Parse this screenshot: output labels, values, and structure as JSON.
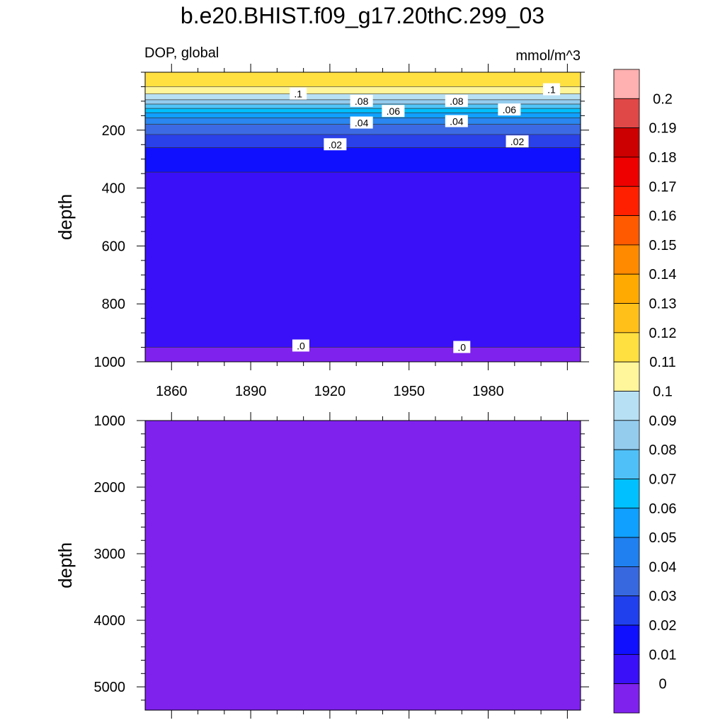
{
  "header": {
    "title": "b.e20.BHIST.f09_g17.20thC.299_03",
    "variable": "DOP, global",
    "units": "mmol/m^3"
  },
  "chart_data": [
    {
      "type": "heatmap",
      "panel": "upper",
      "ylabel": "depth",
      "ylim": [
        1000,
        0
      ],
      "xlim": [
        1850,
        2015
      ],
      "x_ticks": [
        1860,
        1890,
        1920,
        1950,
        1980
      ],
      "y_ticks": [
        200,
        400,
        600,
        800,
        1000
      ],
      "bands": [
        {
          "from": 0,
          "to": 50,
          "level": 0.11
        },
        {
          "from": 50,
          "to": 75,
          "level": 0.1
        },
        {
          "from": 75,
          "to": 95,
          "level": 0.09
        },
        {
          "from": 95,
          "to": 110,
          "level": 0.08
        },
        {
          "from": 110,
          "to": 125,
          "level": 0.07
        },
        {
          "from": 125,
          "to": 140,
          "level": 0.06
        },
        {
          "from": 140,
          "to": 158,
          "level": 0.05
        },
        {
          "from": 158,
          "to": 180,
          "level": 0.04
        },
        {
          "from": 180,
          "to": 215,
          "level": 0.03
        },
        {
          "from": 215,
          "to": 260,
          "level": 0.02
        },
        {
          "from": 260,
          "to": 345,
          "level": 0.01
        },
        {
          "from": 345,
          "to": 950,
          "level": 0
        },
        {
          "from": 950,
          "to": 1000,
          "level": -0.01
        }
      ],
      "contour_labels": [
        {
          "text": ".1",
          "x": 1908,
          "depth": 75
        },
        {
          "text": ".08",
          "x": 1932,
          "depth": 100
        },
        {
          "text": ".06",
          "x": 1944,
          "depth": 135
        },
        {
          "text": ".04",
          "x": 1932,
          "depth": 175
        },
        {
          "text": ".02",
          "x": 1922,
          "depth": 250
        },
        {
          "text": ".08",
          "x": 1968,
          "depth": 100
        },
        {
          "text": ".04",
          "x": 1968,
          "depth": 170
        },
        {
          "text": ".06",
          "x": 1988,
          "depth": 130
        },
        {
          "text": ".1",
          "x": 2004,
          "depth": 60
        },
        {
          "text": ".02",
          "x": 1991,
          "depth": 240
        },
        {
          "text": ".0",
          "x": 1909,
          "depth": 945
        },
        {
          "text": ".0",
          "x": 1970,
          "depth": 950
        }
      ]
    },
    {
      "type": "heatmap",
      "panel": "lower",
      "ylabel": "depth",
      "ylim": [
        5350,
        1000
      ],
      "xlim": [
        1850,
        2015
      ],
      "y_ticks": [
        1000,
        2000,
        3000,
        4000,
        5000
      ],
      "bands": [
        {
          "from": 1000,
          "to": 5350,
          "level": -0.01
        }
      ]
    }
  ],
  "colorbar": {
    "levels": [
      "0.2",
      "0.19",
      "0.18",
      "0.17",
      "0.16",
      "0.15",
      "0.14",
      "0.13",
      "0.12",
      "0.11",
      "0.1",
      "0.09",
      "0.08",
      "0.07",
      "0.06",
      "0.05",
      "0.04",
      "0.03",
      "0.02",
      "0.01",
      "0"
    ],
    "colors": [
      "#ffb0b0",
      "#e04848",
      "#cc0000",
      "#ee0000",
      "#ff2000",
      "#ff5a00",
      "#ff8a00",
      "#ffaa00",
      "#ffc01a",
      "#ffe040",
      "#fff59a",
      "#b8e0f4",
      "#94ccee",
      "#50c0f8",
      "#00c0ff",
      "#10a0ff",
      "#2080f0",
      "#3868e0",
      "#2040ee",
      "#1010ff",
      "#3a10f8",
      "#7f22ee"
    ]
  }
}
